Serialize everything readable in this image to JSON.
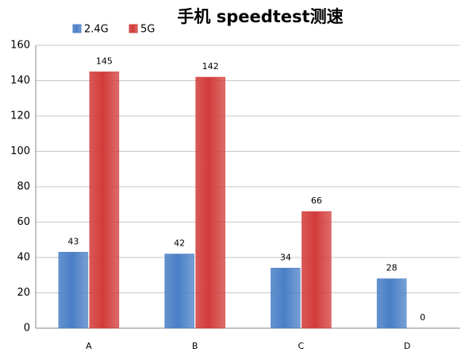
{
  "chart_data": {
    "type": "bar",
    "title": "手机 speedtest测速",
    "categories": [
      "A",
      "B",
      "C",
      "D"
    ],
    "series": [
      {
        "name": "2.4G",
        "color": "#4a7fc6",
        "values": [
          43,
          42,
          34,
          28
        ]
      },
      {
        "name": "5G",
        "color": "#d23c3a",
        "values": [
          145,
          142,
          66,
          0
        ]
      }
    ],
    "ylim": [
      0,
      160
    ],
    "yticks": [
      0,
      20,
      40,
      60,
      80,
      100,
      120,
      140,
      160
    ],
    "grid": true
  }
}
